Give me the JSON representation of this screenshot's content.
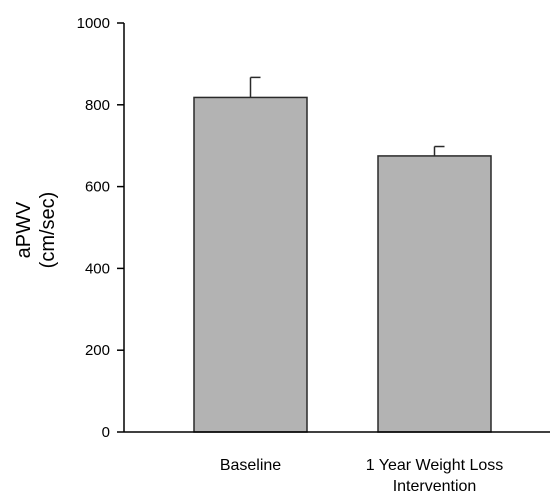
{
  "chart_data": {
    "type": "bar",
    "categories": [
      "Baseline",
      "1 Year Weight Loss Intervention"
    ],
    "category_label_lines": [
      [
        "Baseline"
      ],
      [
        "1 Year Weight Loss",
        "Intervention"
      ]
    ],
    "values": [
      818,
      675
    ],
    "error_upper": [
      867,
      698
    ],
    "ylabel_lines": [
      "aPWV",
      "(cm/sec)"
    ],
    "xlabel": "",
    "ylim": [
      0,
      1000
    ],
    "yticks": [
      0,
      200,
      400,
      600,
      800,
      1000
    ],
    "grid": false,
    "legend": false,
    "colors": {
      "bar_fill": "#b3b3b3",
      "bar_stroke": "#2a2a2a",
      "axis": "#000000"
    }
  }
}
